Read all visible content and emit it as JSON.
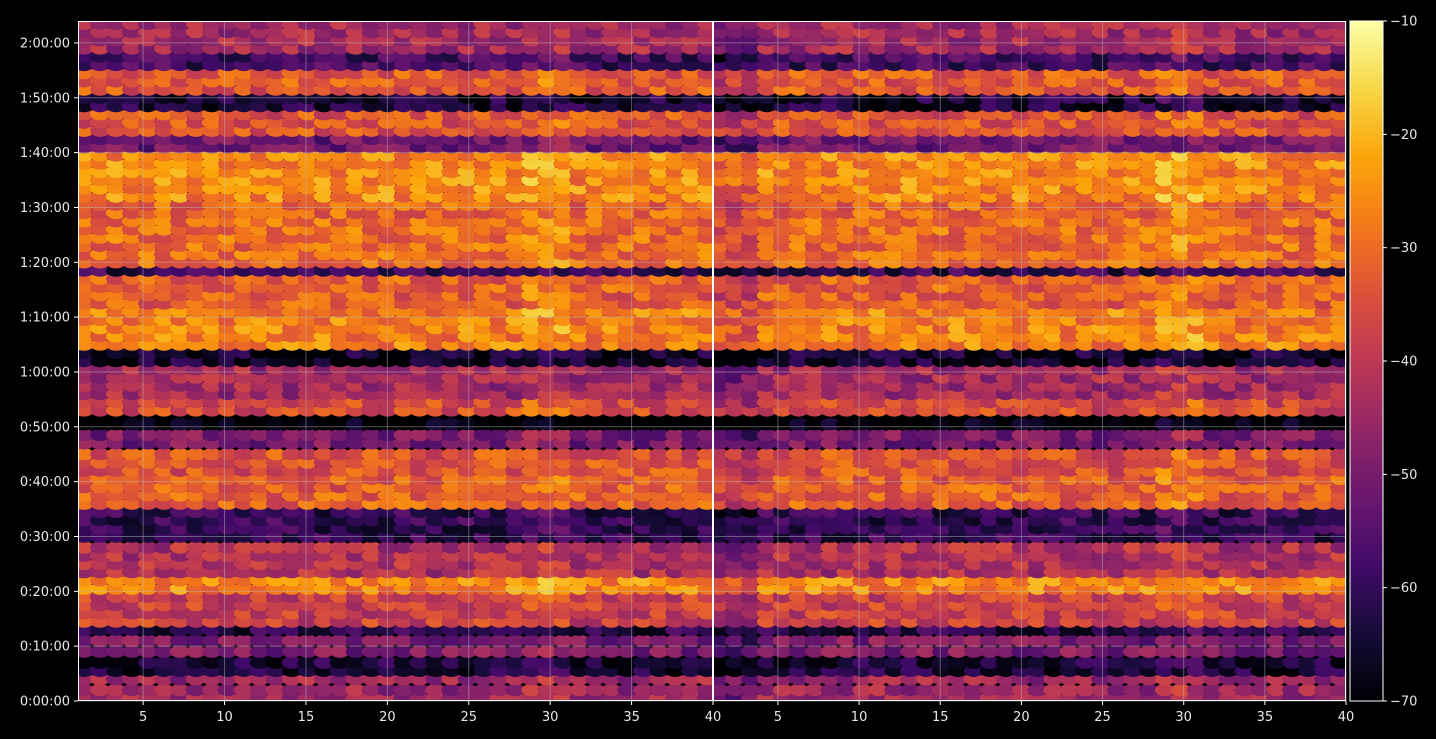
{
  "chart_data": {
    "type": "heatmap",
    "subtype": "dual-panel spectrogram of elliptical markers",
    "title": "",
    "xlabel": "",
    "ylabel": "",
    "background": "#000000",
    "colormap": "inferno",
    "grid": true,
    "panels": [
      {
        "name": "left",
        "xlim": [
          1,
          40
        ],
        "x_ticks": [
          5,
          10,
          15,
          20,
          25,
          30,
          35,
          40
        ],
        "y_labels_shown": true
      },
      {
        "name": "right",
        "xlim": [
          1,
          40
        ],
        "x_ticks": [
          5,
          10,
          15,
          20,
          25,
          30,
          35,
          40
        ],
        "y_labels_shown": false
      }
    ],
    "x_tick_labels": [
      "5",
      "10",
      "15",
      "20",
      "25",
      "30",
      "35",
      "40"
    ],
    "y_axis": {
      "unit": "minutes",
      "ylim": [
        0,
        124
      ],
      "ticks": [
        0,
        10,
        20,
        30,
        40,
        50,
        60,
        70,
        80,
        90,
        100,
        110,
        120
      ],
      "tick_labels": [
        "0:00:00",
        "0:10:00",
        "0:20:00",
        "0:30:00",
        "0:40:00",
        "0:50:00",
        "1:00:00",
        "1:10:00",
        "1:20:00",
        "1:30:00",
        "1:40:00",
        "1:50:00",
        "2:00:00"
      ]
    },
    "colorbar": {
      "range": [
        -70,
        -10
      ],
      "ticks": [
        -10,
        -20,
        -30,
        -40,
        -50,
        -60,
        -70
      ],
      "tick_labels": [
        "−10",
        "−20",
        "−30",
        "−40",
        "−50",
        "−60",
        "−70"
      ],
      "placement": "right"
    },
    "rows_minutes": [
      0.5,
      2,
      4,
      5.5,
      7,
      9,
      11,
      13,
      14.5,
      16,
      17.5,
      19,
      20.5,
      22,
      23.5,
      25,
      26.5,
      28,
      30,
      31.5,
      33,
      34.5,
      36,
      37.5,
      39,
      40.5,
      42,
      43.5,
      45,
      47,
      48.5,
      50.5,
      53,
      54.5,
      56,
      57.5,
      59,
      60.5,
      62,
      63.5,
      65,
      66.5,
      68,
      69.5,
      71,
      72.5,
      74,
      75.5,
      77,
      78.5,
      80,
      81.5,
      83,
      84.5,
      86,
      87.5,
      89,
      90.5,
      92,
      93.5,
      95,
      96.5,
      98,
      99.5,
      101,
      102.5,
      104,
      105.5,
      107,
      108.5,
      110,
      111.5,
      113,
      114.5,
      116,
      117.5,
      119,
      120.5,
      122,
      123.5
    ],
    "band_profile": {
      "description": "approximate mean level in dB per time band (read from colour)",
      "bands": [
        {
          "from": 0,
          "to": 5,
          "level": -45
        },
        {
          "from": 5,
          "to": 8,
          "level": -64
        },
        {
          "from": 8,
          "to": 12,
          "level": -50
        },
        {
          "from": 12,
          "to": 14,
          "level": -62
        },
        {
          "from": 14,
          "to": 20,
          "level": -38
        },
        {
          "from": 20,
          "to": 23,
          "level": -26
        },
        {
          "from": 23,
          "to": 29,
          "level": -42
        },
        {
          "from": 29,
          "to": 35,
          "level": -60
        },
        {
          "from": 35,
          "to": 42,
          "level": -32
        },
        {
          "from": 42,
          "to": 46,
          "level": -34
        },
        {
          "from": 46,
          "to": 50,
          "level": -50
        },
        {
          "from": 50,
          "to": 52,
          "level": -70
        },
        {
          "from": 52,
          "to": 55,
          "level": -36
        },
        {
          "from": 55,
          "to": 62,
          "level": -44
        },
        {
          "from": 62,
          "to": 64,
          "level": -66
        },
        {
          "from": 64,
          "to": 72,
          "level": -27
        },
        {
          "from": 72,
          "to": 78,
          "level": -32
        },
        {
          "from": 78,
          "to": 79,
          "level": -60
        },
        {
          "from": 79,
          "to": 88,
          "level": -30
        },
        {
          "from": 88,
          "to": 92,
          "level": -31
        },
        {
          "from": 92,
          "to": 101,
          "level": -26
        },
        {
          "from": 101,
          "to": 103,
          "level": -52
        },
        {
          "from": 103,
          "to": 108,
          "level": -34
        },
        {
          "from": 108,
          "to": 111,
          "level": -64
        },
        {
          "from": 111,
          "to": 116,
          "level": -33
        },
        {
          "from": 116,
          "to": 119,
          "level": -58
        },
        {
          "from": 119,
          "to": 124,
          "level": -44
        }
      ]
    }
  }
}
